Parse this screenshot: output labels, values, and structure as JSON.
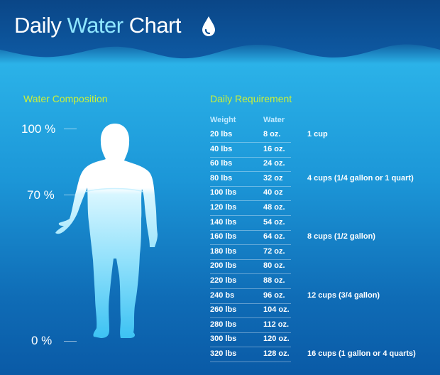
{
  "header": {
    "title_part1": "Daily",
    "title_part2": "Water",
    "title_part3": "Chart",
    "icon": "water-drop-icon"
  },
  "composition": {
    "title": "Water Composition",
    "scale_labels": [
      "100 %",
      "70 %",
      "0 %"
    ],
    "body_water_fraction": 0.7,
    "icon": "human-body-figure"
  },
  "requirement": {
    "title": "Daily Requirement",
    "columns": [
      "Weight",
      "Water"
    ],
    "rows": [
      {
        "weight": "20 lbs",
        "water": "8 oz.",
        "note": "1 cup"
      },
      {
        "weight": "40 lbs",
        "water": "16 oz.",
        "note": ""
      },
      {
        "weight": "60 lbs",
        "water": "24 oz.",
        "note": ""
      },
      {
        "weight": "80 lbs",
        "water": "32 oz",
        "note": "4 cups (1/4 gallon or 1 quart)"
      },
      {
        "weight": "100 lbs",
        "water": "40 oz",
        "note": ""
      },
      {
        "weight": "120 lbs",
        "water": "48 oz.",
        "note": ""
      },
      {
        "weight": "140 lbs",
        "water": "54 oz.",
        "note": ""
      },
      {
        "weight": "160 lbs",
        "water": "64 oz.",
        "note": "8 cups (1/2 gallon)"
      },
      {
        "weight": "180 lbs",
        "water": "72 oz.",
        "note": ""
      },
      {
        "weight": "200 lbs",
        "water": "80 oz.",
        "note": ""
      },
      {
        "weight": "220 lbs",
        "water": "88 oz.",
        "note": ""
      },
      {
        "weight": "240 bs",
        "water": "96 oz.",
        "note": "12 cups (3/4 gallon)"
      },
      {
        "weight": "260 lbs",
        "water": "104 oz.",
        "note": ""
      },
      {
        "weight": "280 lbs",
        "water": "112 oz.",
        "note": ""
      },
      {
        "weight": "300 lbs",
        "water": "120 oz.",
        "note": ""
      },
      {
        "weight": "320 lbs",
        "water": "128 oz.",
        "note": "16 cups (1 gallon or 4 quarts)"
      }
    ]
  },
  "colors": {
    "header_bg": "#0b4f93",
    "water_light": "#2bb2e8",
    "water_deep": "#0a5aa6",
    "accent_title": "#c9ef3a",
    "table_header": "#bfe9ff"
  },
  "chart_data": {
    "type": "table",
    "title": "Daily Water Chart",
    "columns": [
      "Weight",
      "Water"
    ],
    "weights_lbs": [
      20,
      40,
      60,
      80,
      100,
      120,
      140,
      160,
      180,
      200,
      220,
      240,
      260,
      280,
      300,
      320
    ],
    "water_oz": [
      8,
      16,
      24,
      32,
      40,
      48,
      54,
      64,
      72,
      80,
      88,
      96,
      104,
      112,
      120,
      128
    ],
    "annotations": [
      {
        "weight": "20 lbs",
        "text": "1 cup"
      },
      {
        "weight": "80 lbs",
        "text": "4 cups (1/4 gallon or 1 quart)"
      },
      {
        "weight": "160 lbs",
        "text": "8 cups (1/2 gallon)"
      },
      {
        "weight": "240 bs",
        "text": "12 cups (3/4 gallon)"
      },
      {
        "weight": "320 lbs",
        "text": "16 cups (1 gallon or 4 quarts)"
      }
    ],
    "body_water_composition_percent": 70,
    "scale_ticks": [
      "100 %",
      "70 %",
      "0 %"
    ]
  }
}
